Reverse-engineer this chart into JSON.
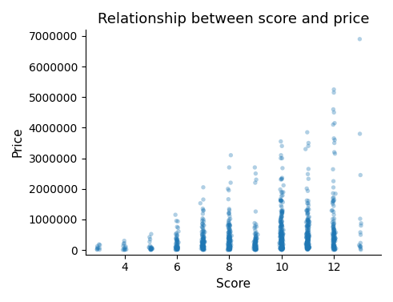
{
  "title": "Relationship between score and price",
  "xlabel": "Score",
  "ylabel": "Price",
  "xlim": [
    2.5,
    13.8
  ],
  "ylim": [
    -150000,
    7200000
  ],
  "yticks": [
    0,
    1000000,
    2000000,
    3000000,
    4000000,
    5000000,
    6000000,
    7000000
  ],
  "ytick_labels": [
    "0",
    "1000000",
    "2000000",
    "3000000",
    "4000000",
    "5000000",
    "6000000",
    "7000000"
  ],
  "xticks": [
    4,
    6,
    8,
    10,
    12
  ],
  "point_color": "#1f77b4",
  "alpha": 0.35,
  "marker_size": 15,
  "figsize": [
    4.91,
    3.77
  ],
  "dpi": 100,
  "seed": 42,
  "score_groups": {
    "3": {
      "count": 6,
      "max_dense": 300000,
      "outliers": [
        180000,
        120000,
        60000
      ]
    },
    "4": {
      "count": 10,
      "max_dense": 350000,
      "outliers": [
        300000,
        200000
      ]
    },
    "5": {
      "count": 18,
      "max_dense": 500000,
      "outliers": [
        520000,
        420000,
        350000
      ]
    },
    "6": {
      "count": 55,
      "max_dense": 1200000,
      "outliers": [
        1150000,
        950000
      ]
    },
    "7": {
      "count": 100,
      "max_dense": 2000000,
      "outliers": [
        2050000,
        1650000,
        1350000,
        1300000
      ]
    },
    "8": {
      "count": 130,
      "max_dense": 2000000,
      "outliers": [
        3100000,
        2700000,
        2200000,
        2000000,
        1950000
      ]
    },
    "9": {
      "count": 80,
      "max_dense": 1500000,
      "outliers": [
        2700000,
        2500000,
        2300000,
        2200000
      ]
    },
    "10": {
      "count": 200,
      "max_dense": 3000000,
      "outliers": [
        3550000,
        3400000,
        3100000
      ]
    },
    "11": {
      "count": 180,
      "max_dense": 3200000,
      "outliers": [
        3850000,
        3500000,
        3400000,
        3300000
      ]
    },
    "12": {
      "count": 110,
      "max_dense": 3500000,
      "outliers": [
        5250000,
        5150000,
        4600000,
        4500000,
        4150000,
        4100000,
        3650000,
        3600000,
        3200000,
        3150000,
        2250000,
        900000
      ]
    },
    "13": {
      "count": 12,
      "max_dense": 2500000,
      "outliers": [
        6900000,
        3800000,
        2450000
      ]
    }
  }
}
